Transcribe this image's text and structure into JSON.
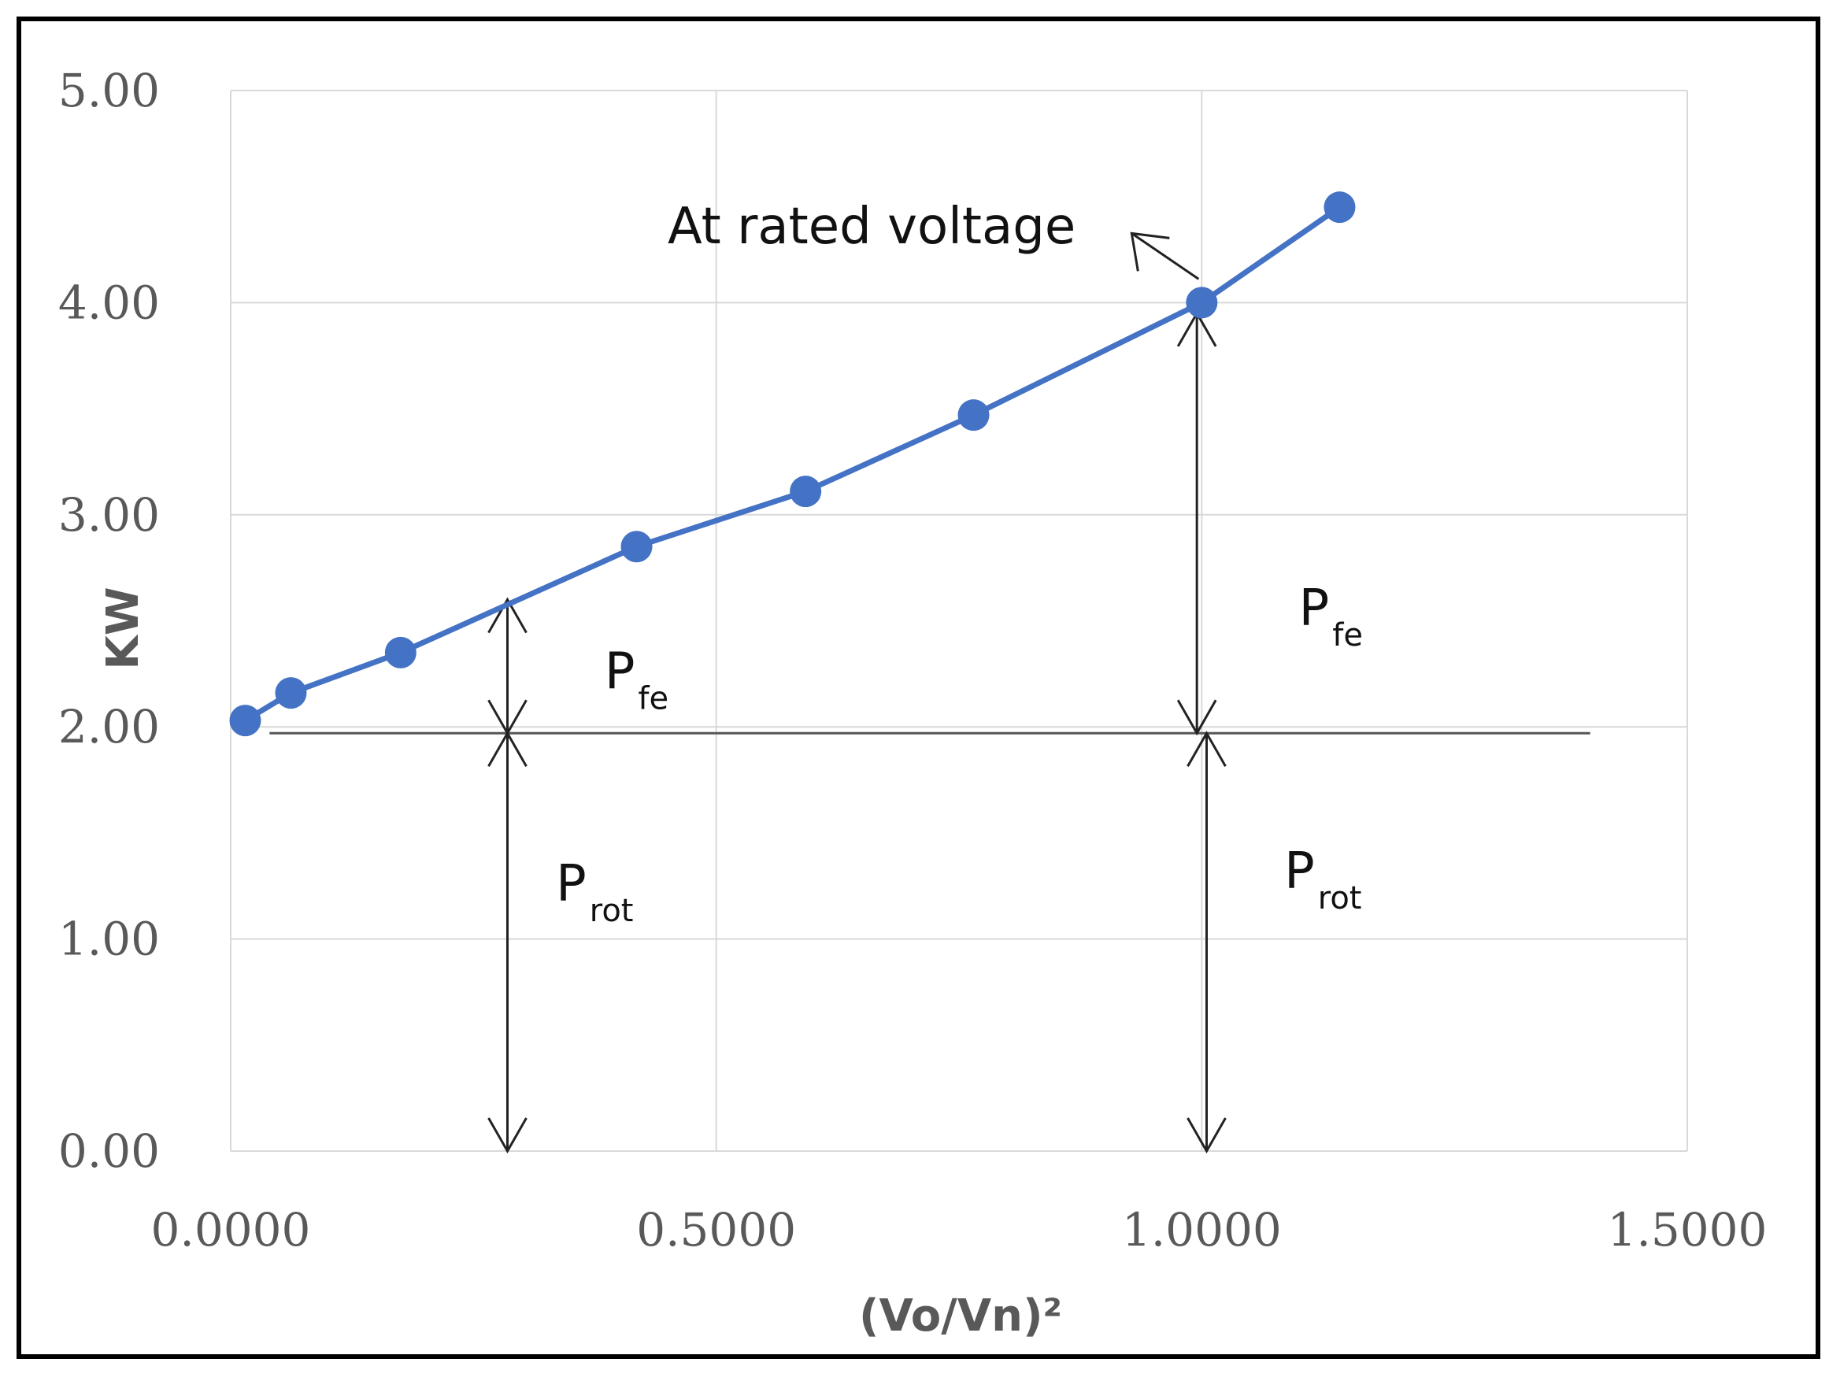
{
  "chart_data": {
    "type": "line",
    "title": "",
    "xlabel": "(Vo/Vn)²",
    "ylabel": "KW",
    "xlim": [
      0.0,
      1.5
    ],
    "ylim": [
      0.0,
      5.0
    ],
    "x_ticks": [
      "0.0000",
      "0.5000",
      "1.0000",
      "1.5000"
    ],
    "y_ticks": [
      "0.00",
      "1.00",
      "2.00",
      "3.00",
      "4.00",
      "5.00"
    ],
    "grid": true,
    "legend": "none",
    "series": [
      {
        "color": "#4472C4",
        "x": [
          0.015,
          0.062,
          0.175,
          0.418,
          0.592,
          0.765,
          1.0,
          1.142
        ],
        "y": [
          2.03,
          2.16,
          2.35,
          2.85,
          3.11,
          3.47,
          4.0,
          4.45
        ]
      }
    ],
    "baseline": {
      "y": 1.97,
      "x_start": 0.04,
      "x_end": 1.4
    },
    "annotations": {
      "rated_voltage": {
        "text": "At rated voltage",
        "point": [
          1.0,
          4.0
        ],
        "text_pos": [
          0.45,
          4.28
        ]
      },
      "pfe_left": {
        "main": "P",
        "sub": "fe",
        "x": 0.285,
        "y_from": 1.97,
        "y_to": 2.6,
        "label_pos": [
          0.385,
          2.18
        ]
      },
      "prot_left": {
        "main": "P",
        "sub": "rot",
        "x": 0.285,
        "y_from": 0.0,
        "y_to": 1.97,
        "label_pos": [
          0.335,
          1.18
        ]
      },
      "pfe_right": {
        "main": "P",
        "sub": "fe",
        "x": 0.995,
        "y_from": 1.97,
        "y_to": 3.95,
        "label_pos": [
          1.1,
          2.48
        ]
      },
      "prot_right": {
        "main": "P",
        "sub": "rot",
        "x": 1.005,
        "y_from": 0.0,
        "y_to": 1.97,
        "label_pos": [
          1.085,
          1.24
        ]
      }
    },
    "colors": {
      "line": "#4472C4",
      "grid": "#d9d9d9",
      "text": "#595959",
      "frame": "#000000"
    }
  }
}
